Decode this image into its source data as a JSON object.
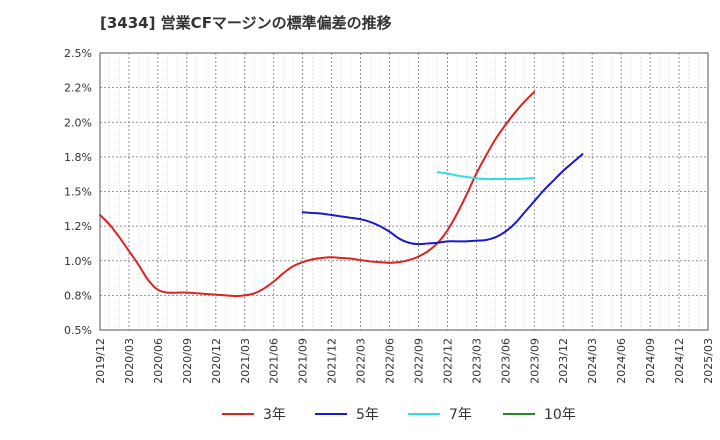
{
  "chart_data": {
    "type": "line",
    "title": "[3434]  営業CFマージンの標準偏差の推移",
    "xlabel": "",
    "ylabel": "",
    "ylim": [
      0.5,
      2.5
    ],
    "y_ticks": [
      0.5,
      0.75,
      1.0,
      1.25,
      1.5,
      1.75,
      2.0,
      2.25,
      2.5
    ],
    "y_tick_labels": [
      "0.5%",
      "0.8%",
      "1.0%",
      "1.2%",
      "1.5%",
      "1.8%",
      "2.0%",
      "2.2%",
      "2.5%"
    ],
    "x_tick_labels": [
      "2019/12",
      "2020/03",
      "2020/06",
      "2020/09",
      "2020/12",
      "2021/03",
      "2021/06",
      "2021/09",
      "2021/12",
      "2022/03",
      "2022/06",
      "2022/09",
      "2022/12",
      "2023/03",
      "2023/06",
      "2023/09",
      "2023/12",
      "2024/03",
      "2024/06",
      "2024/09",
      "2024/12",
      "2025/03"
    ],
    "grid": true,
    "legend_position": "bottom",
    "series": [
      {
        "name": "3年",
        "color": "#dd2222",
        "start_index": 0,
        "values": [
          1.33,
          1.26,
          1.17,
          1.07,
          0.97,
          0.86,
          0.79,
          0.77,
          0.77,
          0.77,
          0.765,
          0.76,
          0.755,
          0.75,
          0.745,
          0.75,
          0.765,
          0.8,
          0.85,
          0.91,
          0.96,
          0.99,
          1.01,
          1.02,
          1.025,
          1.02,
          1.015,
          1.005,
          0.995,
          0.99,
          0.985,
          0.99,
          1.005,
          1.03,
          1.07,
          1.13,
          1.22,
          1.34,
          1.48,
          1.63,
          1.76,
          1.88,
          1.98,
          2.07,
          2.15,
          2.22
        ]
      },
      {
        "name": "5年",
        "color": "#1a1acc",
        "start_index": 21,
        "values": [
          1.35,
          1.345,
          1.34,
          1.33,
          1.32,
          1.31,
          1.3,
          1.28,
          1.25,
          1.21,
          1.16,
          1.13,
          1.12,
          1.125,
          1.13,
          1.14,
          1.14,
          1.14,
          1.145,
          1.15,
          1.17,
          1.21,
          1.27,
          1.35,
          1.43,
          1.51,
          1.58,
          1.65,
          1.71,
          1.77
        ]
      },
      {
        "name": "7年",
        "color": "#33dddd",
        "start_index": 35,
        "values": [
          1.64,
          1.63,
          1.615,
          1.605,
          1.595,
          1.59,
          1.59,
          1.59,
          1.59,
          1.593,
          1.597
        ]
      },
      {
        "name": "10年",
        "color": "#228822",
        "start_index": 0,
        "values": []
      }
    ]
  }
}
